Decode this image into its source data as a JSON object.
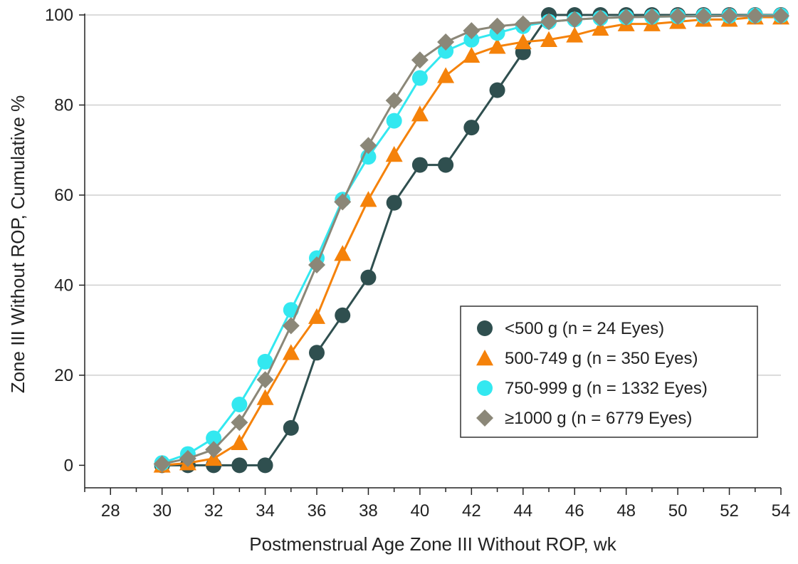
{
  "chart_data": {
    "type": "line",
    "title": "",
    "xlabel": "Postmenstrual Age Zone III Without ROP, wk",
    "ylabel": "Zone III Without ROP, Cumulative %",
    "xlim": [
      27,
      54
    ],
    "ylim": [
      -5,
      100
    ],
    "xticks": [
      28,
      30,
      32,
      34,
      36,
      38,
      40,
      42,
      44,
      46,
      48,
      50,
      52,
      54
    ],
    "yticks": [
      0,
      20,
      40,
      60,
      80,
      100
    ],
    "grid": "horizontal",
    "legend_position": "lower-right",
    "x": [
      30,
      31,
      32,
      33,
      34,
      35,
      36,
      37,
      38,
      39,
      40,
      41,
      42,
      43,
      44,
      45,
      46,
      47,
      48,
      49,
      50,
      51,
      52,
      53,
      54
    ],
    "series": [
      {
        "name": "<500 g (n = 24 Eyes)",
        "marker": "circle",
        "color": "#2f4f4f",
        "values": [
          0,
          0,
          0,
          0,
          0,
          8.3,
          25,
          33.3,
          41.7,
          58.3,
          66.7,
          66.7,
          75,
          83.3,
          91.7,
          100,
          100,
          100,
          100,
          100,
          100,
          100,
          100,
          100,
          100
        ]
      },
      {
        "name": "500-749 g (n = 350 Eyes)",
        "marker": "triangle",
        "color": "#f5820a",
        "values": [
          0,
          0.5,
          1.5,
          5,
          15,
          25,
          33,
          47,
          59,
          69,
          78,
          86.5,
          91,
          93,
          94,
          94.5,
          95.5,
          97,
          98,
          98,
          98.5,
          99,
          99,
          99.5,
          99.5
        ]
      },
      {
        "name": "750-999 g (n = 1332 Eyes)",
        "marker": "circle",
        "color": "#33e8f0",
        "values": [
          0.5,
          2.5,
          6,
          13.5,
          23,
          34.5,
          46,
          59,
          68.5,
          76.5,
          86,
          92,
          94.5,
          96,
          97.5,
          98.5,
          99,
          99.3,
          99.5,
          99.6,
          99.7,
          99.8,
          99.8,
          99.9,
          99.9
        ]
      },
      {
        "name": "≥1000 g (n = 6779 Eyes)",
        "marker": "diamond",
        "color": "#8b8778",
        "values": [
          0.3,
          1.5,
          3.5,
          9.5,
          19,
          31,
          44.5,
          58.5,
          71,
          81,
          90,
          94,
          96.5,
          97.5,
          98,
          98.5,
          99,
          99.3,
          99.5,
          99.6,
          99.7,
          99.7,
          99.8,
          99.8,
          99.8
        ]
      }
    ]
  }
}
